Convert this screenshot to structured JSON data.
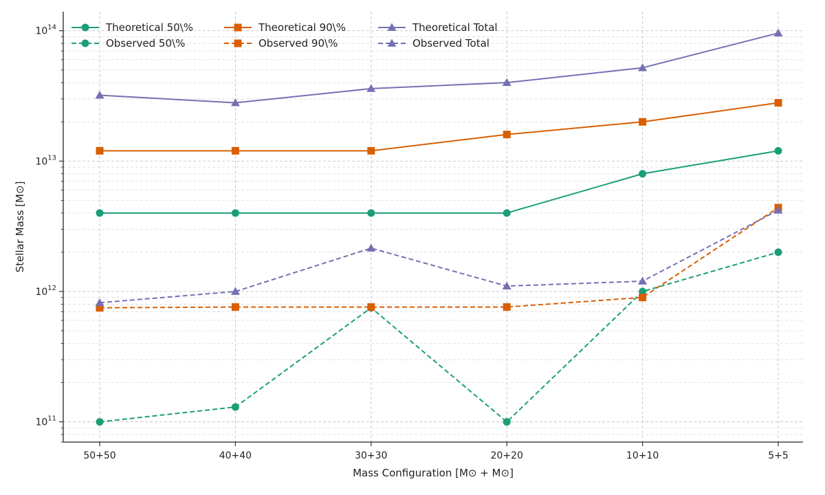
{
  "chart_data": {
    "type": "line",
    "y_scale": "log",
    "ylim": [
      70000000000.0,
      140000000000000.0
    ],
    "grid": true,
    "legend_placement": "top-left",
    "xlabel": "Mass Configuration [M⊙ + M⊙]",
    "ylabel": "Stellar Mass [M⊙]",
    "categories": [
      "50+50",
      "40+40",
      "30+30",
      "20+20",
      "10+10",
      "5+5"
    ],
    "y_ticks": [
      {
        "value": 100000000000.0,
        "base": "10",
        "exp": "11"
      },
      {
        "value": 1000000000000.0,
        "base": "10",
        "exp": "12"
      },
      {
        "value": 10000000000000.0,
        "base": "10",
        "exp": "13"
      },
      {
        "value": 100000000000000.0,
        "base": "10",
        "exp": "14"
      }
    ],
    "series": [
      {
        "name": "Theoretical 50\\%",
        "color": "#1b9e77",
        "marker": "circle",
        "dashed": false,
        "values": [
          4000000000000.0,
          4000000000000.0,
          4000000000000.0,
          4000000000000.0,
          8000000000000.0,
          12000000000000.0
        ]
      },
      {
        "name": "Observed 50\\%",
        "color": "#1b9e77",
        "marker": "circle",
        "dashed": true,
        "values": [
          100000000000.0,
          130000000000.0,
          750000000000.0,
          100000000000.0,
          1000000000000.0,
          2000000000000.0
        ]
      },
      {
        "name": "Theoretical 90\\%",
        "color": "#d95f02",
        "marker": "square",
        "dashed": false,
        "values": [
          12000000000000.0,
          12000000000000.0,
          12000000000000.0,
          16000000000000.0,
          20000000000000.0,
          28000000000000.0
        ]
      },
      {
        "name": "Observed 90\\%",
        "color": "#d95f02",
        "marker": "square",
        "dashed": true,
        "values": [
          750000000000.0,
          760000000000.0,
          760000000000.0,
          760000000000.0,
          900000000000.0,
          4400000000000.0
        ]
      },
      {
        "name": "Theoretical Total",
        "color": "#7570b3",
        "marker": "triangle",
        "dashed": false,
        "values": [
          32000000000000.0,
          28000000000000.0,
          36000000000000.0,
          40000000000000.0,
          52000000000000.0,
          96000000000000.0
        ]
      },
      {
        "name": "Observed Total",
        "color": "#7570b3",
        "marker": "triangle",
        "dashed": true,
        "values": [
          820000000000.0,
          1000000000000.0,
          2150000000000.0,
          1100000000000.0,
          1200000000000.0,
          4200000000000.0
        ]
      }
    ]
  }
}
